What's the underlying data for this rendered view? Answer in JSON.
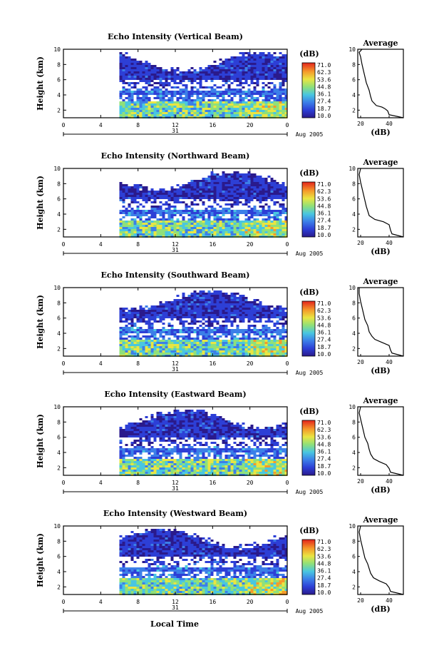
{
  "chart_data": {
    "type": "heatmap",
    "figure_xlabel": "Local Time",
    "colorbar": {
      "unit": "(dB)",
      "ticks": [
        "71.0",
        "62.3",
        "53.6",
        "44.8",
        "36.1",
        "27.4",
        "18.7",
        "10.0"
      ],
      "range": [
        10.0,
        71.0
      ]
    },
    "date_label": "31",
    "month_label": "Aug 2005",
    "panels": [
      {
        "title": "Echo Intensity (Vertical Beam)",
        "ylabel": "Height (km)",
        "xlim": [
          0,
          24
        ],
        "xticks": [
          "0",
          "4",
          "8",
          "12",
          "16",
          "20",
          "0"
        ],
        "ylim": [
          1,
          10
        ],
        "yticks": [
          "2",
          "4",
          "6",
          "8",
          "10"
        ],
        "data_start_hour": 6,
        "average": {
          "title": "Average",
          "xlabel": "(dB)",
          "xlim": [
            18,
            50
          ],
          "xticks": [
            "20",
            "40"
          ],
          "profile": [
            [
              50,
              1.0
            ],
            [
              40,
              1.4
            ],
            [
              39,
              1.9
            ],
            [
              37,
              2.2
            ],
            [
              35,
              2.4
            ],
            [
              31,
              2.6
            ],
            [
              28,
              3.2
            ],
            [
              27,
              3.8
            ],
            [
              26,
              4.6
            ],
            [
              24,
              5.6
            ],
            [
              23,
              6.4
            ],
            [
              22,
              7.2
            ],
            [
              21,
              8.0
            ],
            [
              20,
              9.0
            ],
            [
              19,
              9.6
            ],
            [
              21,
              10.0
            ]
          ]
        }
      },
      {
        "title": "Echo Intensity (Northward Beam)",
        "ylabel": "Height (km)",
        "xlim": [
          0,
          24
        ],
        "xticks": [
          "0",
          "4",
          "8",
          "12",
          "16",
          "20",
          "0"
        ],
        "ylim": [
          1,
          10
        ],
        "yticks": [
          "2",
          "4",
          "6",
          "8",
          "10"
        ],
        "data_start_hour": 6,
        "average": {
          "title": "Average",
          "xlabel": "(dB)",
          "xlim": [
            18,
            50
          ],
          "xticks": [
            "20",
            "40"
          ],
          "profile": [
            [
              50,
              1.0
            ],
            [
              42,
              1.4
            ],
            [
              41,
              1.9
            ],
            [
              40,
              2.6
            ],
            [
              36,
              3.0
            ],
            [
              30,
              3.3
            ],
            [
              26,
              3.8
            ],
            [
              25,
              4.4
            ],
            [
              24,
              5.0
            ],
            [
              23,
              5.8
            ],
            [
              22,
              6.6
            ],
            [
              21,
              7.4
            ],
            [
              20,
              8.2
            ],
            [
              19,
              9.2
            ],
            [
              20,
              10.0
            ]
          ]
        }
      },
      {
        "title": "Echo Intensity (Southward Beam)",
        "ylabel": "Height (km)",
        "xlim": [
          0,
          24
        ],
        "xticks": [
          "0",
          "4",
          "8",
          "12",
          "16",
          "20",
          "0"
        ],
        "ylim": [
          1,
          10
        ],
        "yticks": [
          "2",
          "4",
          "6",
          "8",
          "10"
        ],
        "data_start_hour": 6,
        "average": {
          "title": "Average",
          "xlabel": "(dB)",
          "xlim": [
            18,
            50
          ],
          "xticks": [
            "20",
            "40"
          ],
          "profile": [
            [
              50,
              1.0
            ],
            [
              42,
              1.4
            ],
            [
              41,
              1.8
            ],
            [
              40,
              2.4
            ],
            [
              35,
              2.8
            ],
            [
              30,
              3.2
            ],
            [
              28,
              3.6
            ],
            [
              26,
              4.2
            ],
            [
              25,
              5.0
            ],
            [
              23,
              5.8
            ],
            [
              22,
              6.6
            ],
            [
              21,
              7.4
            ],
            [
              20,
              8.2
            ],
            [
              19,
              9.2
            ],
            [
              19,
              10.0
            ]
          ]
        }
      },
      {
        "title": "Echo Intensity (Eastward Beam)",
        "ylabel": "Height (km)",
        "xlim": [
          0,
          24
        ],
        "xticks": [
          "0",
          "4",
          "8",
          "12",
          "16",
          "20",
          "0"
        ],
        "ylim": [
          1,
          10
        ],
        "yticks": [
          "2",
          "4",
          "6",
          "8",
          "10"
        ],
        "data_start_hour": 6,
        "average": {
          "title": "Average",
          "xlabel": "(dB)",
          "xlim": [
            18,
            50
          ],
          "xticks": [
            "20",
            "40"
          ],
          "profile": [
            [
              50,
              1.0
            ],
            [
              41,
              1.4
            ],
            [
              40,
              1.9
            ],
            [
              38,
              2.4
            ],
            [
              33,
              2.8
            ],
            [
              29,
              3.2
            ],
            [
              27,
              3.8
            ],
            [
              26,
              4.4
            ],
            [
              25,
              5.2
            ],
            [
              23,
              6.0
            ],
            [
              22,
              6.8
            ],
            [
              21,
              7.6
            ],
            [
              20,
              8.4
            ],
            [
              19,
              9.2
            ],
            [
              20,
              10.0
            ]
          ]
        }
      },
      {
        "title": "Echo Intensity (Westward Beam)",
        "ylabel": "Height (km)",
        "xlim": [
          0,
          24
        ],
        "xticks": [
          "0",
          "4",
          "8",
          "12",
          "16",
          "20",
          "0"
        ],
        "ylim": [
          1,
          10
        ],
        "yticks": [
          "2",
          "4",
          "6",
          "8",
          "10"
        ],
        "data_start_hour": 6,
        "average": {
          "title": "Average",
          "xlabel": "(dB)",
          "xlim": [
            18,
            50
          ],
          "xticks": [
            "20",
            "40"
          ],
          "profile": [
            [
              50,
              1.0
            ],
            [
              41,
              1.4
            ],
            [
              40,
              1.9
            ],
            [
              38,
              2.4
            ],
            [
              33,
              2.8
            ],
            [
              29,
              3.2
            ],
            [
              27,
              3.8
            ],
            [
              26,
              4.4
            ],
            [
              25,
              5.0
            ],
            [
              23,
              5.8
            ],
            [
              22,
              6.6
            ],
            [
              21,
              7.4
            ],
            [
              20,
              8.2
            ],
            [
              19,
              9.2
            ],
            [
              20,
              10.0
            ]
          ]
        }
      }
    ]
  }
}
